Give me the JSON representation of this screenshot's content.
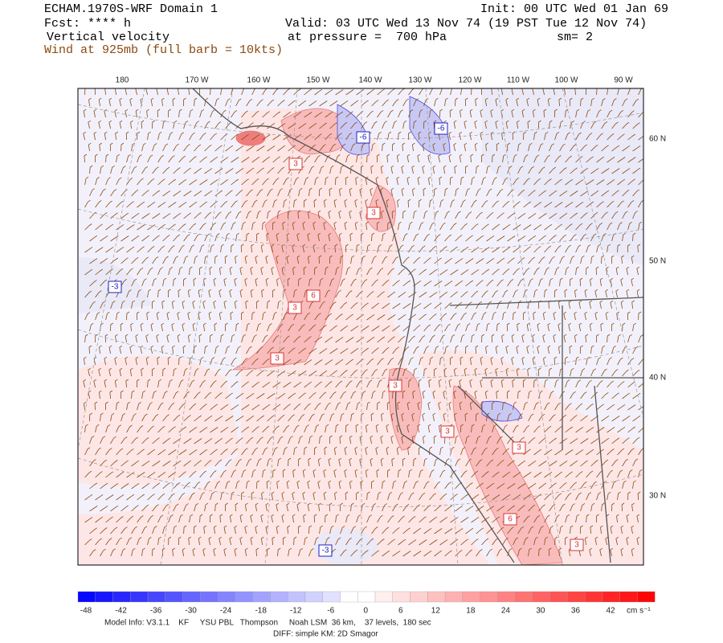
{
  "header": {
    "title": "ECHAM.1970S-WRF Domain 1",
    "forecast": "Fcst: **** h",
    "field": "Vertical velocity",
    "wind": "Wind at 925mb (full barb = 10kts)",
    "init": "Init: 00 UTC Wed 01 Jan 69",
    "valid": "Valid: 03 UTC Wed 13 Nov 74 (19 PST Tue 12 Nov 74)",
    "pressure": "at pressure =  700 hPa",
    "smooth": "sm= 2"
  },
  "longitudes": [
    "180",
    "170 W",
    "160 W",
    "150 W",
    "140 W",
    "130 W",
    "120 W",
    "110 W",
    "100 W",
    "90 W"
  ],
  "latitudes": [
    "60 N",
    "50 N",
    "40 N",
    "30 N"
  ],
  "contour_labels": [
    "3",
    "-6",
    "-6",
    "3",
    "-3",
    "3",
    "6",
    "3",
    "3",
    "3",
    "3",
    "6",
    "3",
    "-3"
  ],
  "colorbar": {
    "ticks": [
      -48,
      -42,
      -36,
      -30,
      -24,
      -18,
      -12,
      -6,
      0,
      6,
      12,
      18,
      24,
      30,
      36,
      42
    ],
    "unit": "cm s⁻¹"
  },
  "footer": {
    "model": "Model Info: V3.1.1    KF     YSU PBL   Thompson     Noah LSM  36 km,    37 levels,  180 sec",
    "diff": "DIFF: simple KM: 2D Smagor"
  }
}
